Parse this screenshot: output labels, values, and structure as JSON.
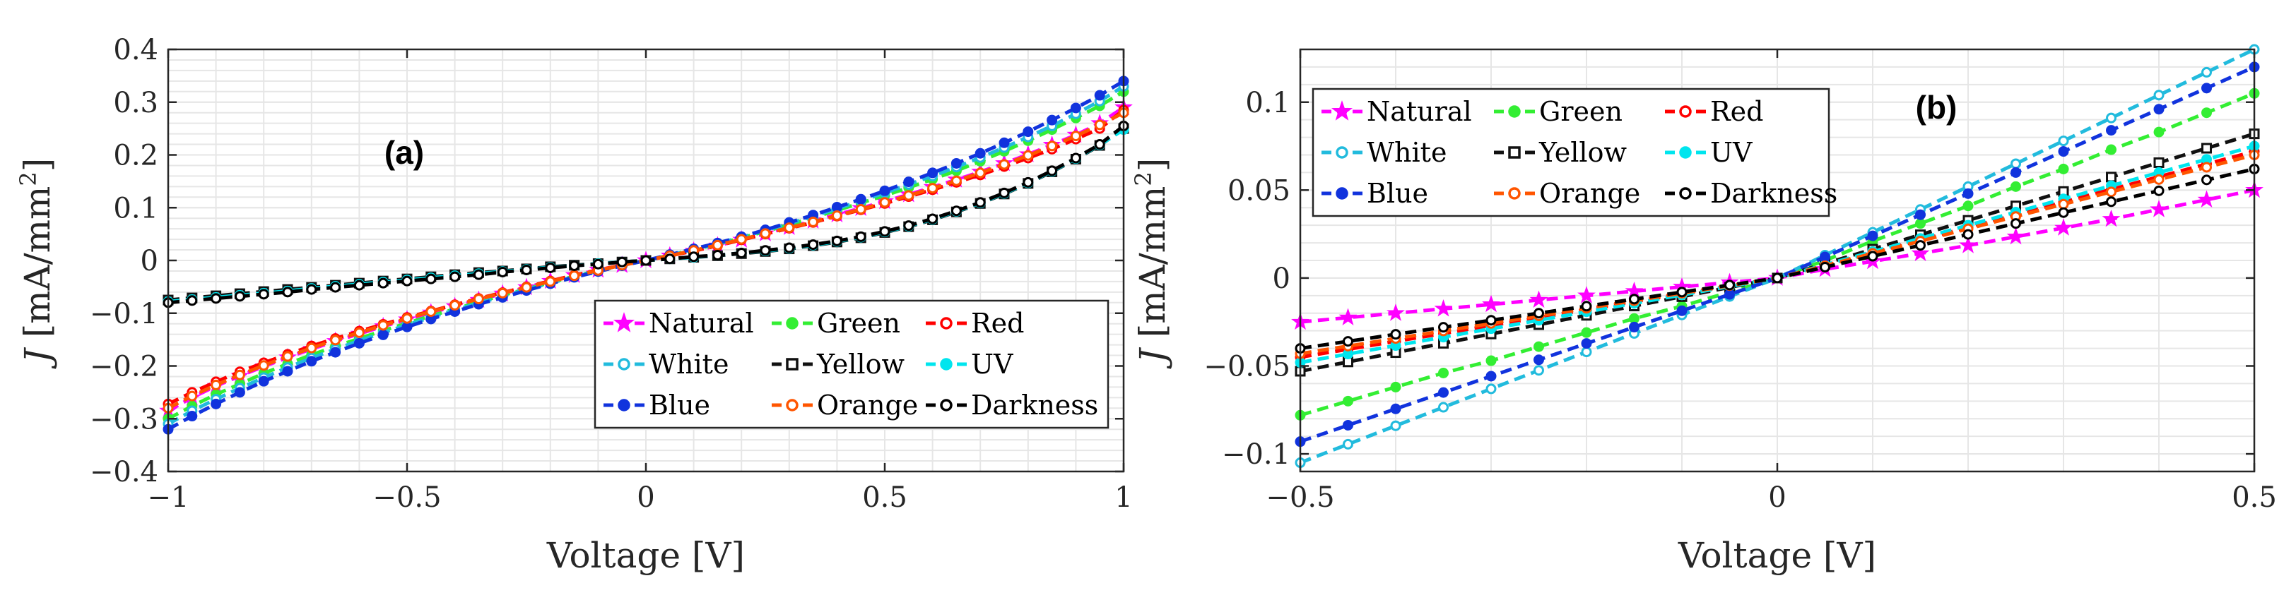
{
  "chart_data": [
    {
      "type": "line",
      "panel_label": "(a)",
      "xlabel": "Voltage [V]",
      "ylabel_symbol": "J",
      "ylabel_unit": "[mA/mm",
      "ylabel_sup": "2",
      "ylabel_close": "]",
      "xlim": [
        -1,
        1
      ],
      "ylim": [
        -0.4,
        0.4
      ],
      "xticks": [
        -1,
        -0.5,
        0,
        0.5,
        1
      ],
      "xtick_labels": [
        "−1",
        "−0.5",
        "0",
        "0.5",
        "1"
      ],
      "yticks": [
        -0.4,
        -0.3,
        -0.2,
        -0.1,
        0,
        0.1,
        0.2,
        0.3,
        0.4
      ],
      "ytick_labels": [
        "−0.4",
        "−0.3",
        "−0.2",
        "−0.1",
        "0",
        "0.1",
        "0.2",
        "0.3",
        "0.4"
      ],
      "grid": true,
      "legend_position": "bottom-right",
      "x": [
        -1,
        -0.95,
        -0.9,
        -0.85,
        -0.8,
        -0.75,
        -0.7,
        -0.65,
        -0.6,
        -0.55,
        -0.5,
        -0.45,
        -0.4,
        -0.35,
        -0.3,
        -0.25,
        -0.2,
        -0.15,
        -0.1,
        -0.05,
        0,
        0.05,
        0.1,
        0.15,
        0.2,
        0.25,
        0.3,
        0.35,
        0.4,
        0.45,
        0.5,
        0.55,
        0.6,
        0.65,
        0.7,
        0.75,
        0.8,
        0.85,
        0.9,
        0.95,
        1
      ],
      "series": [
        {
          "name": "Natural",
          "color": "#ff00ff",
          "marker": "star",
          "values": [
            -0.285,
            -0.26,
            -0.238,
            -0.219,
            -0.201,
            -0.184,
            -0.168,
            -0.153,
            -0.139,
            -0.125,
            -0.112,
            -0.099,
            -0.087,
            -0.075,
            -0.063,
            -0.051,
            -0.039,
            -0.028,
            -0.018,
            -0.009,
            0,
            0.009,
            0.018,
            0.028,
            0.039,
            0.051,
            0.063,
            0.075,
            0.087,
            0.099,
            0.112,
            0.125,
            0.139,
            0.153,
            0.168,
            0.184,
            0.201,
            0.219,
            0.238,
            0.26,
            0.29
          ]
        },
        {
          "name": "Green",
          "color": "#33ee33",
          "marker": "dot",
          "values": [
            -0.3,
            -0.276,
            -0.254,
            -0.234,
            -0.214,
            -0.196,
            -0.179,
            -0.163,
            -0.148,
            -0.133,
            -0.119,
            -0.105,
            -0.092,
            -0.079,
            -0.066,
            -0.054,
            -0.042,
            -0.03,
            -0.019,
            -0.009,
            0,
            0.01,
            0.02,
            0.031,
            0.043,
            0.055,
            0.068,
            0.081,
            0.095,
            0.109,
            0.123,
            0.138,
            0.154,
            0.17,
            0.188,
            0.207,
            0.227,
            0.248,
            0.27,
            0.293,
            0.32
          ]
        },
        {
          "name": "Red",
          "color": "#ff0000",
          "marker": "circle",
          "values": [
            -0.272,
            -0.25,
            -0.23,
            -0.211,
            -0.194,
            -0.178,
            -0.162,
            -0.148,
            -0.134,
            -0.121,
            -0.108,
            -0.096,
            -0.084,
            -0.072,
            -0.061,
            -0.05,
            -0.039,
            -0.028,
            -0.018,
            -0.009,
            0,
            0.009,
            0.018,
            0.028,
            0.039,
            0.05,
            0.061,
            0.072,
            0.084,
            0.096,
            0.108,
            0.121,
            0.134,
            0.148,
            0.162,
            0.178,
            0.194,
            0.211,
            0.23,
            0.25,
            0.285
          ]
        },
        {
          "name": "White",
          "color": "#22bbdd",
          "marker": "circle",
          "values": [
            -0.31,
            -0.285,
            -0.263,
            -0.242,
            -0.222,
            -0.203,
            -0.185,
            -0.168,
            -0.152,
            -0.137,
            -0.122,
            -0.108,
            -0.094,
            -0.081,
            -0.068,
            -0.055,
            -0.043,
            -0.031,
            -0.02,
            -0.01,
            0,
            0.01,
            0.021,
            0.032,
            0.044,
            0.057,
            0.07,
            0.084,
            0.098,
            0.113,
            0.128,
            0.144,
            0.16,
            0.177,
            0.195,
            0.214,
            0.234,
            0.255,
            0.278,
            0.302,
            0.33
          ]
        },
        {
          "name": "Yellow",
          "color": "#111111",
          "marker": "square",
          "values": [
            -0.075,
            -0.071,
            -0.067,
            -0.063,
            -0.059,
            -0.055,
            -0.051,
            -0.047,
            -0.043,
            -0.039,
            -0.035,
            -0.031,
            -0.027,
            -0.023,
            -0.02,
            -0.016,
            -0.012,
            -0.009,
            -0.006,
            -0.003,
            0,
            0.003,
            0.006,
            0.009,
            0.013,
            0.017,
            0.022,
            0.028,
            0.035,
            0.043,
            0.053,
            0.064,
            0.077,
            0.092,
            0.108,
            0.126,
            0.146,
            0.168,
            0.192,
            0.218,
            0.25
          ]
        },
        {
          "name": "UV",
          "color": "#00e5ee",
          "marker": "dot",
          "values": [
            -0.078,
            -0.074,
            -0.07,
            -0.066,
            -0.062,
            -0.058,
            -0.053,
            -0.049,
            -0.045,
            -0.041,
            -0.037,
            -0.033,
            -0.029,
            -0.025,
            -0.021,
            -0.017,
            -0.013,
            -0.01,
            -0.006,
            -0.003,
            0,
            0.003,
            0.006,
            0.01,
            0.014,
            0.018,
            0.023,
            0.029,
            0.036,
            0.044,
            0.054,
            0.065,
            0.078,
            0.093,
            0.109,
            0.127,
            0.147,
            0.169,
            0.193,
            0.219,
            0.248
          ]
        },
        {
          "name": "Blue",
          "color": "#1133dd",
          "marker": "dot",
          "values": [
            -0.32,
            -0.295,
            -0.272,
            -0.25,
            -0.229,
            -0.21,
            -0.191,
            -0.174,
            -0.157,
            -0.141,
            -0.126,
            -0.111,
            -0.097,
            -0.083,
            -0.07,
            -0.057,
            -0.044,
            -0.032,
            -0.021,
            -0.01,
            0,
            0.011,
            0.022,
            0.033,
            0.045,
            0.058,
            0.072,
            0.086,
            0.101,
            0.116,
            0.132,
            0.149,
            0.166,
            0.184,
            0.203,
            0.223,
            0.244,
            0.266,
            0.289,
            0.313,
            0.34
          ]
        },
        {
          "name": "Orange",
          "color": "#ff5500",
          "marker": "circle",
          "values": [
            -0.28,
            -0.257,
            -0.236,
            -0.217,
            -0.199,
            -0.182,
            -0.166,
            -0.151,
            -0.137,
            -0.123,
            -0.11,
            -0.097,
            -0.085,
            -0.073,
            -0.062,
            -0.051,
            -0.04,
            -0.029,
            -0.019,
            -0.009,
            0,
            0.009,
            0.019,
            0.029,
            0.04,
            0.051,
            0.062,
            0.073,
            0.085,
            0.097,
            0.11,
            0.123,
            0.137,
            0.151,
            0.166,
            0.182,
            0.199,
            0.217,
            0.236,
            0.257,
            0.28
          ]
        },
        {
          "name": "Darkness",
          "color": "#000000",
          "marker": "circle",
          "values": [
            -0.08,
            -0.076,
            -0.072,
            -0.068,
            -0.064,
            -0.06,
            -0.055,
            -0.051,
            -0.047,
            -0.043,
            -0.039,
            -0.035,
            -0.031,
            -0.027,
            -0.022,
            -0.018,
            -0.014,
            -0.01,
            -0.007,
            -0.003,
            0,
            0.003,
            0.007,
            0.01,
            0.014,
            0.019,
            0.024,
            0.03,
            0.037,
            0.045,
            0.055,
            0.066,
            0.079,
            0.094,
            0.11,
            0.128,
            0.148,
            0.17,
            0.194,
            0.22,
            0.255
          ]
        }
      ]
    },
    {
      "type": "line",
      "panel_label": "(b)",
      "xlabel": "Voltage [V]",
      "ylabel_symbol": "J",
      "ylabel_unit": "[mA/mm",
      "ylabel_sup": "2",
      "ylabel_close": "]",
      "xlim": [
        -0.5,
        0.5
      ],
      "ylim": [
        -0.11,
        0.13
      ],
      "xticks": [
        -0.5,
        0,
        0.5
      ],
      "xtick_labels": [
        "−0.5",
        "0",
        "0.5"
      ],
      "yticks": [
        -0.1,
        -0.05,
        0,
        0.05,
        0.1
      ],
      "ytick_labels": [
        "−0.1",
        "−0.05",
        "0",
        "0.05",
        "0.1"
      ],
      "grid": true,
      "legend_position": "top-left",
      "x": [
        -0.5,
        -0.45,
        -0.4,
        -0.35,
        -0.3,
        -0.25,
        -0.2,
        -0.15,
        -0.1,
        -0.05,
        0,
        0.05,
        0.1,
        0.15,
        0.2,
        0.25,
        0.3,
        0.35,
        0.4,
        0.45,
        0.5
      ],
      "series": [
        {
          "name": "Natural",
          "color": "#ff00ff",
          "marker": "star",
          "values": [
            -0.025,
            -0.0225,
            -0.02,
            -0.0175,
            -0.015,
            -0.0125,
            -0.01,
            -0.0075,
            -0.005,
            -0.0025,
            0,
            0.005,
            0.0095,
            0.014,
            0.0185,
            0.0235,
            0.0285,
            0.0335,
            0.039,
            0.0445,
            0.05
          ]
        },
        {
          "name": "Green",
          "color": "#33ee33",
          "marker": "dot",
          "values": [
            -0.078,
            -0.07,
            -0.062,
            -0.054,
            -0.047,
            -0.039,
            -0.031,
            -0.023,
            -0.016,
            -0.008,
            0,
            0.01,
            0.021,
            0.031,
            0.041,
            0.052,
            0.062,
            0.073,
            0.083,
            0.094,
            0.105
          ]
        },
        {
          "name": "Red",
          "color": "#ff0000",
          "marker": "circle",
          "values": [
            -0.045,
            -0.0405,
            -0.036,
            -0.0315,
            -0.027,
            -0.0225,
            -0.018,
            -0.0135,
            -0.009,
            -0.0045,
            0,
            0.0072,
            0.0144,
            0.0216,
            0.0288,
            0.036,
            0.0432,
            0.0504,
            0.0576,
            0.0648,
            0.072
          ]
        },
        {
          "name": "White",
          "color": "#22bbdd",
          "marker": "circle",
          "values": [
            -0.105,
            -0.0945,
            -0.084,
            -0.0735,
            -0.063,
            -0.0525,
            -0.042,
            -0.0315,
            -0.021,
            -0.0105,
            0,
            0.013,
            0.026,
            0.039,
            0.052,
            0.065,
            0.078,
            0.091,
            0.104,
            0.117,
            0.13
          ]
        },
        {
          "name": "Yellow",
          "color": "#111111",
          "marker": "square",
          "values": [
            -0.053,
            -0.0477,
            -0.0424,
            -0.0371,
            -0.0318,
            -0.0265,
            -0.0212,
            -0.0159,
            -0.0106,
            -0.0053,
            0,
            0.0082,
            0.0164,
            0.0246,
            0.0328,
            0.041,
            0.0492,
            0.0574,
            0.0656,
            0.0738,
            0.082
          ]
        },
        {
          "name": "UV",
          "color": "#00e5ee",
          "marker": "dot",
          "values": [
            -0.048,
            -0.0432,
            -0.0384,
            -0.0336,
            -0.0288,
            -0.024,
            -0.0192,
            -0.0144,
            -0.0096,
            -0.0048,
            0,
            0.0075,
            0.015,
            0.0225,
            0.03,
            0.0375,
            0.045,
            0.0525,
            0.06,
            0.0675,
            0.075
          ]
        },
        {
          "name": "Blue",
          "color": "#1133dd",
          "marker": "dot",
          "values": [
            -0.093,
            -0.0837,
            -0.0744,
            -0.0651,
            -0.0558,
            -0.0465,
            -0.0372,
            -0.0279,
            -0.0186,
            -0.0093,
            0,
            0.012,
            0.024,
            0.036,
            0.048,
            0.06,
            0.072,
            0.084,
            0.096,
            0.108,
            0.12
          ]
        },
        {
          "name": "Orange",
          "color": "#ff5500",
          "marker": "circle",
          "values": [
            -0.043,
            -0.0387,
            -0.0344,
            -0.0301,
            -0.0258,
            -0.0215,
            -0.0172,
            -0.0129,
            -0.0086,
            -0.0043,
            0,
            0.007,
            0.014,
            0.021,
            0.028,
            0.035,
            0.042,
            0.049,
            0.056,
            0.063,
            0.07
          ]
        },
        {
          "name": "Darkness",
          "color": "#000000",
          "marker": "circle",
          "values": [
            -0.04,
            -0.036,
            -0.032,
            -0.028,
            -0.024,
            -0.02,
            -0.016,
            -0.012,
            -0.008,
            -0.004,
            0,
            0.0062,
            0.0124,
            0.0186,
            0.0248,
            0.031,
            0.0372,
            0.0434,
            0.0496,
            0.0558,
            0.062
          ]
        }
      ]
    }
  ]
}
